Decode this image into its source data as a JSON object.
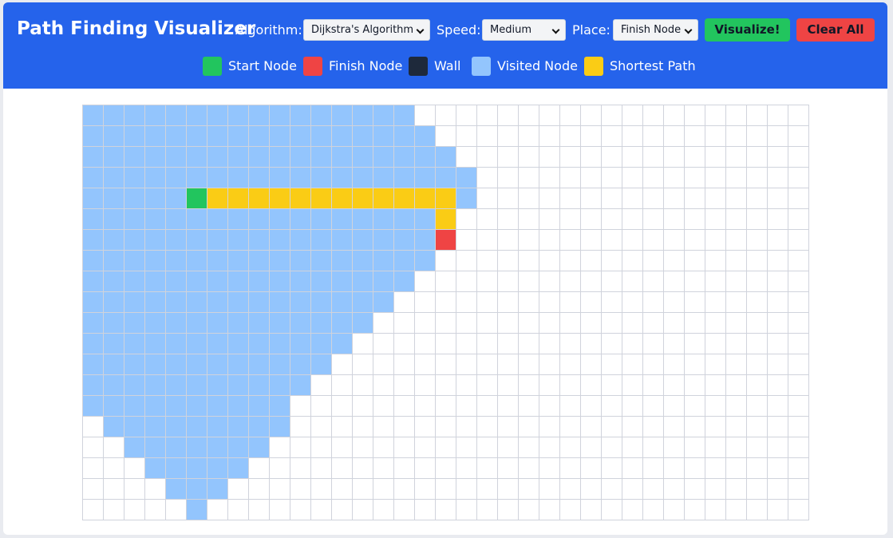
{
  "header": {
    "title": "Path Finding Visualizer",
    "algorithm_label": "Algorithm:",
    "algorithm_value": "Dijkstra's Algorithm",
    "speed_label": "Speed:",
    "speed_value": "Medium",
    "place_label": "Place:",
    "place_value": "Finish Node",
    "visualize_label": "Visualize!",
    "clear_label": "Clear All"
  },
  "legend": [
    {
      "label": "Start Node",
      "color": "#22c55e"
    },
    {
      "label": "Finish Node",
      "color": "#ef4444"
    },
    {
      "label": "Wall",
      "color": "#1e293b"
    },
    {
      "label": "Visited Node",
      "color": "#93c5fd"
    },
    {
      "label": "Shortest Path",
      "color": "#facc15"
    }
  ],
  "colors": {
    "header": "#2563eb",
    "visualize_button": "#22c55e",
    "clear_button": "#ef4444"
  },
  "grid": {
    "rows": 20,
    "cols": 35,
    "start": [
      4,
      5
    ],
    "finish": [
      6,
      17
    ],
    "walls": [],
    "visited_ranges": [
      [
        0,
        0,
        15
      ],
      [
        1,
        0,
        16
      ],
      [
        2,
        0,
        17
      ],
      [
        3,
        0,
        18
      ],
      [
        4,
        0,
        18
      ],
      [
        5,
        0,
        17
      ],
      [
        6,
        0,
        16
      ],
      [
        7,
        0,
        16
      ],
      [
        8,
        0,
        15
      ],
      [
        9,
        0,
        14
      ],
      [
        10,
        0,
        13
      ],
      [
        11,
        0,
        12
      ],
      [
        12,
        0,
        11
      ],
      [
        13,
        0,
        10
      ],
      [
        14,
        0,
        9
      ],
      [
        15,
        1,
        9
      ],
      [
        16,
        2,
        8
      ],
      [
        17,
        3,
        7
      ],
      [
        18,
        4,
        6
      ],
      [
        19,
        5,
        5
      ]
    ],
    "path": [
      [
        4,
        6
      ],
      [
        4,
        7
      ],
      [
        4,
        8
      ],
      [
        4,
        9
      ],
      [
        4,
        10
      ],
      [
        4,
        11
      ],
      [
        4,
        12
      ],
      [
        4,
        13
      ],
      [
        4,
        14
      ],
      [
        4,
        15
      ],
      [
        4,
        16
      ],
      [
        4,
        17
      ],
      [
        5,
        17
      ]
    ]
  }
}
